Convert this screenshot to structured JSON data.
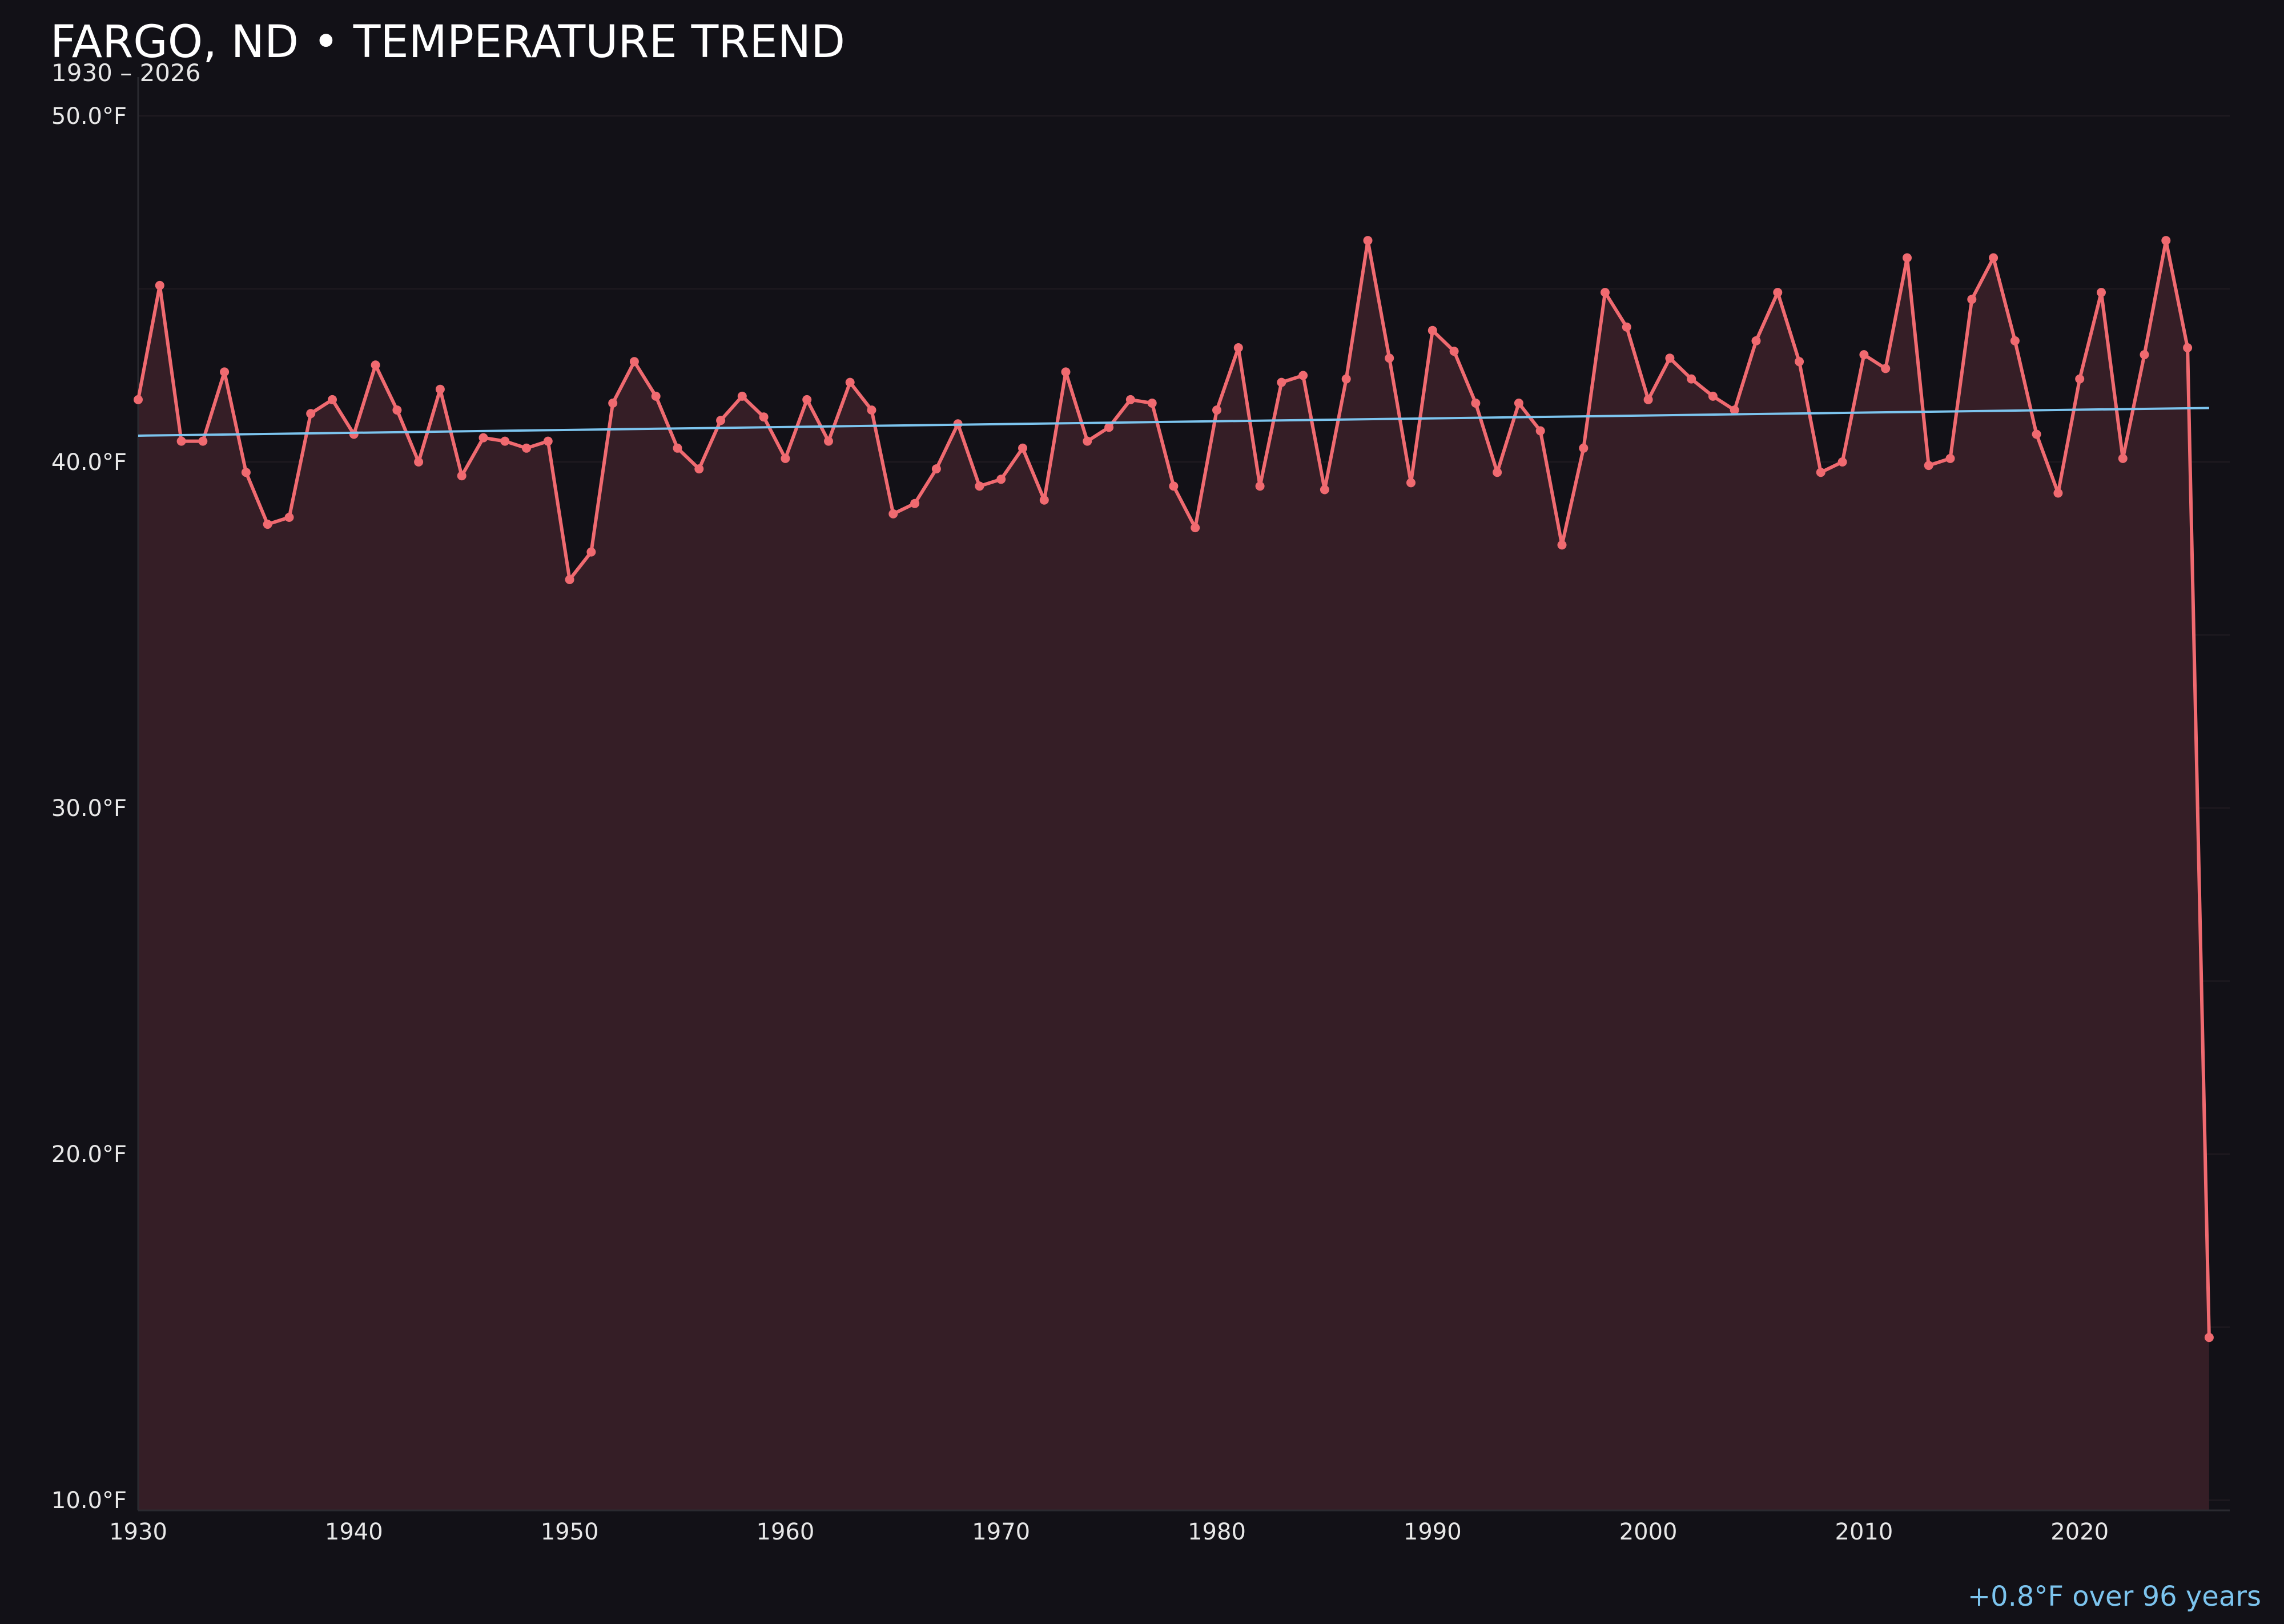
{
  "colors": {
    "background": "#121117",
    "series": "#f06a70",
    "fill": "#351e26",
    "trend": "#7cc4ee",
    "grid": "#2a2329",
    "text": "#e8e8e8"
  },
  "chart_data": {
    "type": "line",
    "title": "FARGO, ND • TEMPERATURE TREND",
    "subtitle": "1930 – 2026",
    "xlim": [
      1930,
      2027
    ],
    "ylim": [
      10,
      50
    ],
    "y_unit": "°F",
    "xticks": [
      "1930",
      "1940",
      "1950",
      "1960",
      "1970",
      "1980",
      "1990",
      "2000",
      "2010",
      "2020"
    ],
    "yticks": [
      "10.0°F",
      "20.0°F",
      "30.0°F",
      "40.0°F",
      "50.0°F"
    ],
    "grid": true,
    "x": [
      1930,
      1931,
      1932,
      1933,
      1934,
      1935,
      1936,
      1937,
      1938,
      1939,
      1940,
      1941,
      1942,
      1943,
      1944,
      1945,
      1946,
      1947,
      1948,
      1949,
      1950,
      1951,
      1952,
      1953,
      1954,
      1955,
      1956,
      1957,
      1958,
      1959,
      1960,
      1961,
      1962,
      1963,
      1964,
      1965,
      1966,
      1967,
      1968,
      1969,
      1970,
      1971,
      1972,
      1973,
      1974,
      1975,
      1976,
      1977,
      1978,
      1979,
      1980,
      1981,
      1982,
      1983,
      1984,
      1985,
      1986,
      1987,
      1988,
      1989,
      1990,
      1991,
      1992,
      1993,
      1994,
      1995,
      1996,
      1997,
      1998,
      1999,
      2000,
      2001,
      2002,
      2003,
      2004,
      2005,
      2006,
      2007,
      2008,
      2009,
      2010,
      2011,
      2012,
      2013,
      2014,
      2015,
      2016,
      2017,
      2018,
      2019,
      2020,
      2021,
      2022,
      2023,
      2024,
      2025,
      2026
    ],
    "series": [
      {
        "values": [
          41.8,
          45.1,
          40.6,
          40.6,
          42.6,
          39.7,
          38.2,
          38.4,
          41.4,
          41.8,
          40.8,
          42.8,
          41.5,
          40.0,
          42.1,
          39.6,
          40.7,
          40.6,
          40.4,
          40.6,
          36.6,
          37.4,
          41.7,
          42.9,
          41.9,
          40.4,
          39.8,
          41.2,
          41.9,
          41.3,
          40.1,
          41.8,
          40.6,
          42.3,
          41.5,
          38.5,
          38.8,
          39.8,
          41.1,
          39.3,
          39.5,
          40.4,
          38.9,
          42.6,
          40.6,
          41.0,
          41.8,
          41.7,
          39.3,
          38.1,
          41.5,
          43.3,
          39.3,
          42.3,
          42.5,
          39.2,
          42.4,
          46.4,
          43.0,
          39.4,
          43.8,
          43.2,
          41.7,
          39.7,
          41.7,
          40.9,
          37.6,
          40.4,
          44.9,
          43.9,
          41.8,
          43.0,
          42.4,
          41.9,
          41.5,
          43.5,
          44.9,
          42.9,
          39.7,
          40.0,
          43.1,
          42.7,
          45.9,
          39.9,
          40.1,
          44.7,
          45.9,
          43.5,
          40.8,
          39.1,
          42.4,
          44.9,
          40.1,
          43.1,
          46.4,
          43.3,
          14.7
        ]
      }
    ],
    "trend": {
      "start": [
        1930,
        40.76
      ],
      "end": [
        2026,
        41.56
      ],
      "label": "+0.8°F over 96 years"
    }
  }
}
